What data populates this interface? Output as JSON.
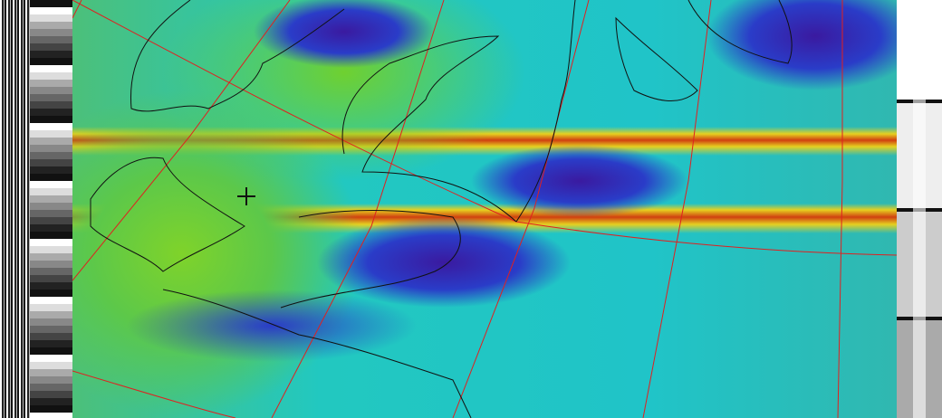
{
  "image": {
    "type": "satellite-apt-image",
    "overlay": {
      "graticule_color": "#e02020",
      "coastline_color": "#111111"
    },
    "palette": {
      "low": "#3a1aa0",
      "mid": "#20c4c8",
      "high": "#7fd32a",
      "band": "#e6d020",
      "band_core": "#d04010"
    },
    "marker": "crosshair-icon"
  }
}
